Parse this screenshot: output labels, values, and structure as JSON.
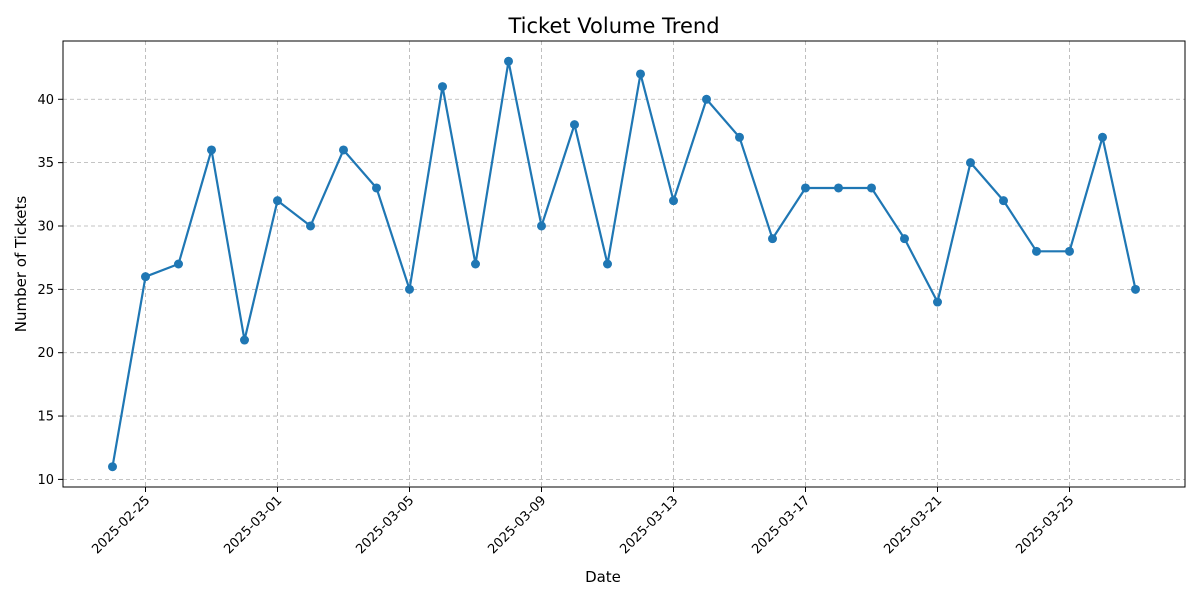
{
  "chart_data": {
    "type": "line",
    "title": "Ticket Volume Trend",
    "xlabel": "Date",
    "ylabel": "Number of Tickets",
    "grid": true,
    "line_color": "#1f77b4",
    "x_ticks": [
      "2025-02-25",
      "2025-03-01",
      "2025-03-05",
      "2025-03-09",
      "2025-03-13",
      "2025-03-17",
      "2025-03-21",
      "2025-03-25"
    ],
    "y_ticks": [
      10,
      15,
      20,
      25,
      30,
      35,
      40
    ],
    "xlim": [
      "2025-02-22T12:00",
      "2025-03-28T12:00"
    ],
    "ylim": [
      9.4,
      44.6
    ],
    "series": [
      {
        "x": [
          "2025-02-24",
          "2025-02-25",
          "2025-02-26",
          "2025-02-27",
          "2025-02-28",
          "2025-03-01",
          "2025-03-02",
          "2025-03-03",
          "2025-03-04",
          "2025-03-05",
          "2025-03-06",
          "2025-03-07",
          "2025-03-08",
          "2025-03-09",
          "2025-03-10",
          "2025-03-11",
          "2025-03-12",
          "2025-03-13",
          "2025-03-14",
          "2025-03-15",
          "2025-03-16",
          "2025-03-17",
          "2025-03-18",
          "2025-03-19",
          "2025-03-20",
          "2025-03-21",
          "2025-03-22",
          "2025-03-23",
          "2025-03-24",
          "2025-03-25",
          "2025-03-26",
          "2025-03-27"
        ],
        "values": [
          11,
          26,
          27,
          36,
          21,
          32,
          30,
          36,
          33,
          25,
          41,
          27,
          43,
          30,
          38,
          27,
          42,
          32,
          40,
          37,
          29,
          33,
          33,
          33,
          29,
          24,
          35,
          32,
          28,
          28,
          37,
          25
        ]
      }
    ]
  }
}
